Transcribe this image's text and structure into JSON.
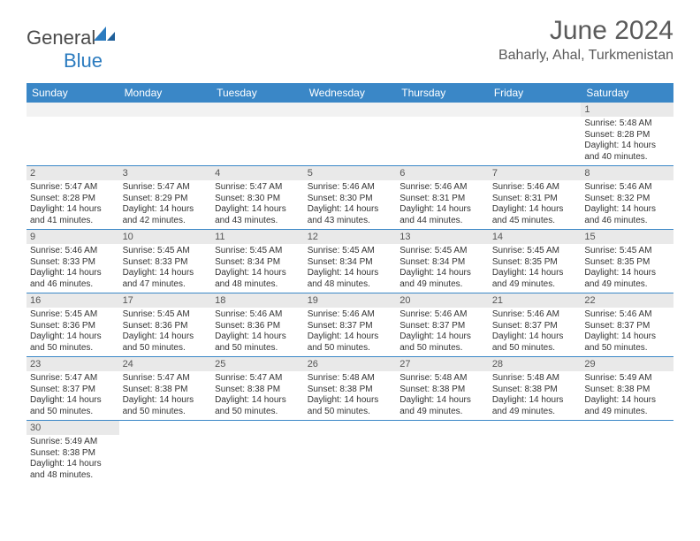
{
  "logo": {
    "text1": "General",
    "text2": "Blue"
  },
  "title": "June 2024",
  "location": "Baharly, Ahal, Turkmenistan",
  "colors": {
    "header_bg": "#3a87c7",
    "header_text": "#ffffff",
    "daynum_bg": "#e9e9e9",
    "row_border": "#3a87c7",
    "body_text": "#333333",
    "logo_gray": "#4a4a4a",
    "logo_blue": "#2b7bbf"
  },
  "weekdays": [
    "Sunday",
    "Monday",
    "Tuesday",
    "Wednesday",
    "Thursday",
    "Friday",
    "Saturday"
  ],
  "weeks": [
    [
      null,
      null,
      null,
      null,
      null,
      null,
      {
        "n": "1",
        "sr": "5:48 AM",
        "ss": "8:28 PM",
        "dl": "14 hours and 40 minutes."
      }
    ],
    [
      {
        "n": "2",
        "sr": "5:47 AM",
        "ss": "8:28 PM",
        "dl": "14 hours and 41 minutes."
      },
      {
        "n": "3",
        "sr": "5:47 AM",
        "ss": "8:29 PM",
        "dl": "14 hours and 42 minutes."
      },
      {
        "n": "4",
        "sr": "5:47 AM",
        "ss": "8:30 PM",
        "dl": "14 hours and 43 minutes."
      },
      {
        "n": "5",
        "sr": "5:46 AM",
        "ss": "8:30 PM",
        "dl": "14 hours and 43 minutes."
      },
      {
        "n": "6",
        "sr": "5:46 AM",
        "ss": "8:31 PM",
        "dl": "14 hours and 44 minutes."
      },
      {
        "n": "7",
        "sr": "5:46 AM",
        "ss": "8:31 PM",
        "dl": "14 hours and 45 minutes."
      },
      {
        "n": "8",
        "sr": "5:46 AM",
        "ss": "8:32 PM",
        "dl": "14 hours and 46 minutes."
      }
    ],
    [
      {
        "n": "9",
        "sr": "5:46 AM",
        "ss": "8:33 PM",
        "dl": "14 hours and 46 minutes."
      },
      {
        "n": "10",
        "sr": "5:45 AM",
        "ss": "8:33 PM",
        "dl": "14 hours and 47 minutes."
      },
      {
        "n": "11",
        "sr": "5:45 AM",
        "ss": "8:34 PM",
        "dl": "14 hours and 48 minutes."
      },
      {
        "n": "12",
        "sr": "5:45 AM",
        "ss": "8:34 PM",
        "dl": "14 hours and 48 minutes."
      },
      {
        "n": "13",
        "sr": "5:45 AM",
        "ss": "8:34 PM",
        "dl": "14 hours and 49 minutes."
      },
      {
        "n": "14",
        "sr": "5:45 AM",
        "ss": "8:35 PM",
        "dl": "14 hours and 49 minutes."
      },
      {
        "n": "15",
        "sr": "5:45 AM",
        "ss": "8:35 PM",
        "dl": "14 hours and 49 minutes."
      }
    ],
    [
      {
        "n": "16",
        "sr": "5:45 AM",
        "ss": "8:36 PM",
        "dl": "14 hours and 50 minutes."
      },
      {
        "n": "17",
        "sr": "5:45 AM",
        "ss": "8:36 PM",
        "dl": "14 hours and 50 minutes."
      },
      {
        "n": "18",
        "sr": "5:46 AM",
        "ss": "8:36 PM",
        "dl": "14 hours and 50 minutes."
      },
      {
        "n": "19",
        "sr": "5:46 AM",
        "ss": "8:37 PM",
        "dl": "14 hours and 50 minutes."
      },
      {
        "n": "20",
        "sr": "5:46 AM",
        "ss": "8:37 PM",
        "dl": "14 hours and 50 minutes."
      },
      {
        "n": "21",
        "sr": "5:46 AM",
        "ss": "8:37 PM",
        "dl": "14 hours and 50 minutes."
      },
      {
        "n": "22",
        "sr": "5:46 AM",
        "ss": "8:37 PM",
        "dl": "14 hours and 50 minutes."
      }
    ],
    [
      {
        "n": "23",
        "sr": "5:47 AM",
        "ss": "8:37 PM",
        "dl": "14 hours and 50 minutes."
      },
      {
        "n": "24",
        "sr": "5:47 AM",
        "ss": "8:38 PM",
        "dl": "14 hours and 50 minutes."
      },
      {
        "n": "25",
        "sr": "5:47 AM",
        "ss": "8:38 PM",
        "dl": "14 hours and 50 minutes."
      },
      {
        "n": "26",
        "sr": "5:48 AM",
        "ss": "8:38 PM",
        "dl": "14 hours and 50 minutes."
      },
      {
        "n": "27",
        "sr": "5:48 AM",
        "ss": "8:38 PM",
        "dl": "14 hours and 49 minutes."
      },
      {
        "n": "28",
        "sr": "5:48 AM",
        "ss": "8:38 PM",
        "dl": "14 hours and 49 minutes."
      },
      {
        "n": "29",
        "sr": "5:49 AM",
        "ss": "8:38 PM",
        "dl": "14 hours and 49 minutes."
      }
    ],
    [
      {
        "n": "30",
        "sr": "5:49 AM",
        "ss": "8:38 PM",
        "dl": "14 hours and 48 minutes."
      },
      null,
      null,
      null,
      null,
      null,
      null
    ]
  ],
  "labels": {
    "sunrise": "Sunrise: ",
    "sunset": "Sunset: ",
    "daylight": "Daylight: "
  }
}
